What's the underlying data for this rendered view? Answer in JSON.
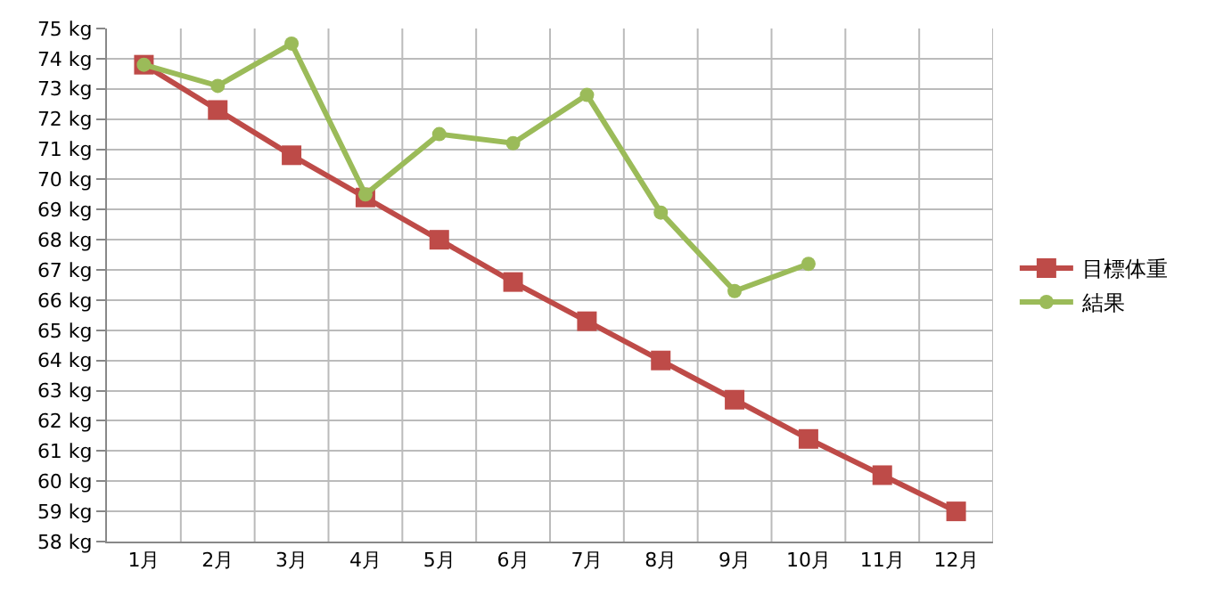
{
  "chart_data": {
    "type": "line",
    "categories": [
      "1月",
      "2月",
      "3月",
      "4月",
      "5月",
      "6月",
      "7月",
      "8月",
      "9月",
      "10月",
      "11月",
      "12月"
    ],
    "ylim": [
      58,
      75
    ],
    "yticks": [
      {
        "value": 58,
        "label": "58 kg"
      },
      {
        "value": 59,
        "label": "59 kg"
      },
      {
        "value": 60,
        "label": "60 kg"
      },
      {
        "value": 61,
        "label": "61 kg"
      },
      {
        "value": 62,
        "label": "62 kg"
      },
      {
        "value": 63,
        "label": "63 kg"
      },
      {
        "value": 64,
        "label": "64 kg"
      },
      {
        "value": 65,
        "label": "65 kg"
      },
      {
        "value": 66,
        "label": "66 kg"
      },
      {
        "value": 67,
        "label": "67 kg"
      },
      {
        "value": 68,
        "label": "68 kg"
      },
      {
        "value": 69,
        "label": "69 kg"
      },
      {
        "value": 70,
        "label": "70 kg"
      },
      {
        "value": 71,
        "label": "71 kg"
      },
      {
        "value": 72,
        "label": "72 kg"
      },
      {
        "value": 73,
        "label": "73 kg"
      },
      {
        "value": 74,
        "label": "74 kg"
      },
      {
        "value": 75,
        "label": "75 kg"
      }
    ],
    "grid": true,
    "legend": "right",
    "line_style": "solid",
    "series": [
      {
        "name": "目標体重",
        "color": "#be4b48",
        "marker": "square",
        "values": [
          73.8,
          72.3,
          70.8,
          69.4,
          68.0,
          66.6,
          65.3,
          64.0,
          62.7,
          61.4,
          60.2,
          59.0
        ]
      },
      {
        "name": "結果",
        "color": "#9bbb59",
        "marker": "circle",
        "values": [
          73.8,
          73.1,
          74.5,
          69.5,
          71.5,
          71.2,
          72.8,
          68.9,
          66.3,
          67.2,
          null,
          null
        ]
      }
    ]
  }
}
